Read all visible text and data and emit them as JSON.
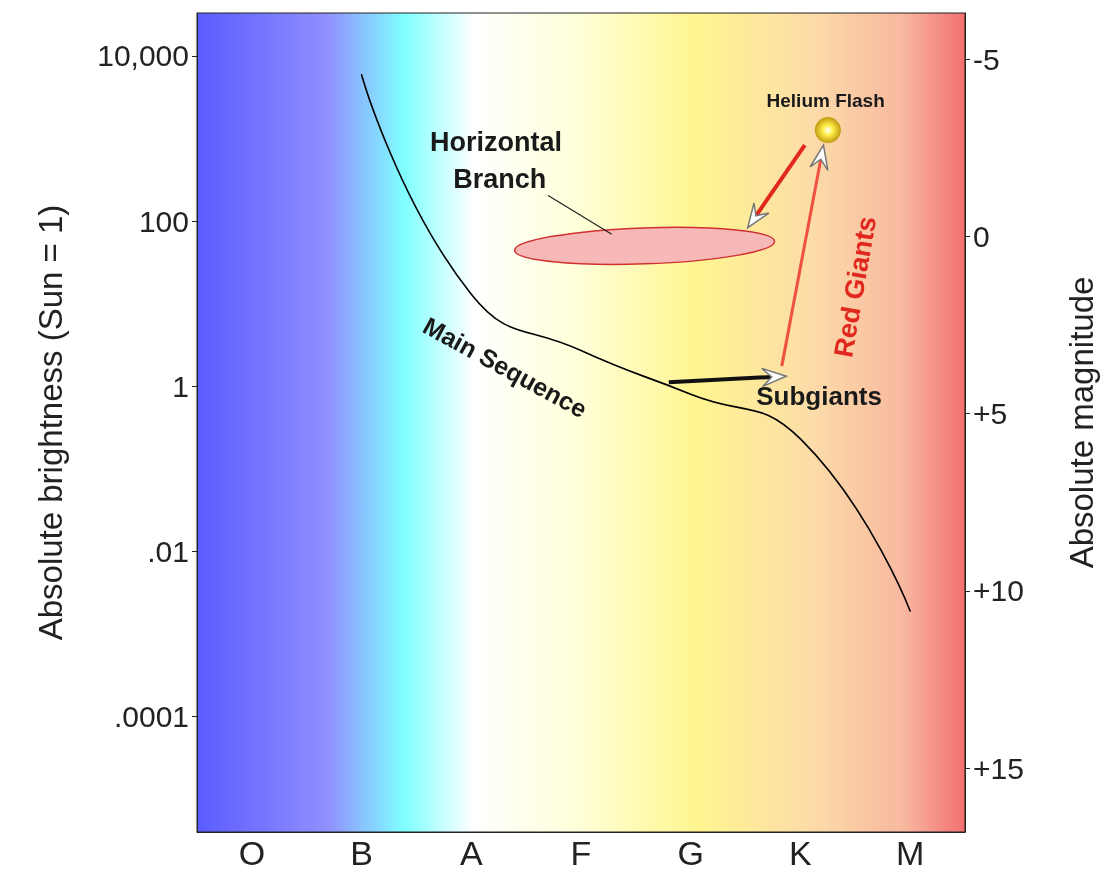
{
  "chart_data": {
    "type": "line",
    "ylabel": "Absolute brightness (Sun = 1)",
    "y2label": "Absolute magnitude",
    "categories": [
      "O",
      "B",
      "A",
      "F",
      "G",
      "K",
      "M"
    ],
    "series": [
      {
        "color": "#000000",
        "values": [
          null,
          5900,
          13,
          2.7,
          0.8,
          0.23,
          0.0019
        ]
      }
    ],
    "log": true,
    "ylim": [
      4e-06,
      33000
    ],
    "yticks": [
      {
        "value": 10000,
        "label": "10,000"
      },
      100,
      1,
      {
        "value": 0.01,
        "label": ".01"
      },
      {
        "value": 0.0001,
        "label": ".0001"
      }
    ],
    "y2lim": [
      16.8,
      -6.3
    ],
    "y2ticks": [
      -5,
      0,
      {
        "value": 5,
        "label": "+5"
      },
      {
        "value": 10,
        "label": "+10"
      },
      {
        "value": 15,
        "label": "+15"
      }
    ],
    "annotations": [
      "Horizontal Branch",
      "Helium Flash",
      "Main Sequence",
      {
        "text": "Subgiants",
        "x": "G",
        "y": 0.8
      },
      "Red Giants"
    ],
    "grid": false,
    "marker": "none",
    "line_style": "solid"
  }
}
